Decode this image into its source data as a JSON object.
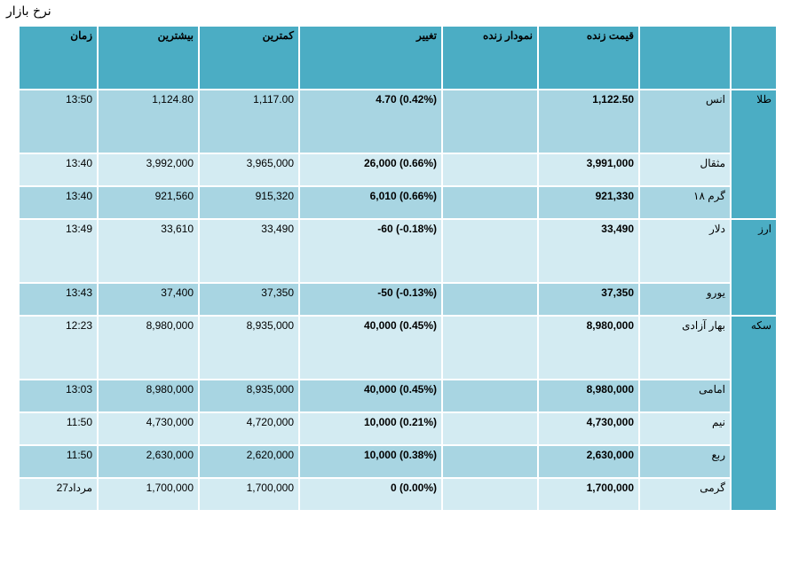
{
  "title": "نرخ بازار",
  "headers": {
    "time": "زمان",
    "high": "بیشترین",
    "low": "کمترین",
    "change": "تغییر",
    "live_chart": "نمودار زنده",
    "live_price": "قیمت زنده"
  },
  "groups": {
    "gold": "طلا",
    "currency": "ارز",
    "coin": "سکه"
  },
  "rows": [
    {
      "name": "انس",
      "price": "1,122.50",
      "change": "4.70 (0.42%)",
      "low": "1,117.00",
      "high": "1,124.80",
      "time": "13:50"
    },
    {
      "name": "مثقال",
      "price": "3,991,000",
      "change": "26,000 (0.66%)",
      "low": "3,965,000",
      "high": "3,992,000",
      "time": "13:40"
    },
    {
      "name": "گرم ۱۸",
      "price": "921,330",
      "change": "6,010 (0.66%)",
      "low": "915,320",
      "high": "921,560",
      "time": "13:40"
    },
    {
      "name": "دلار",
      "price": "33,490",
      "change": "-60 (-0.18%)",
      "low": "33,490",
      "high": "33,610",
      "time": "13:49"
    },
    {
      "name": "یورو",
      "price": "37,350",
      "change": "-50 (-0.13%)",
      "low": "37,350",
      "high": "37,400",
      "time": "13:43"
    },
    {
      "name": "بهار آزادی",
      "price": "8,980,000",
      "change": "40,000 (0.45%)",
      "low": "8,935,000",
      "high": "8,980,000",
      "time": "12:23"
    },
    {
      "name": "امامی",
      "price": "8,980,000",
      "change": "40,000 (0.45%)",
      "low": "8,935,000",
      "high": "8,980,000",
      "time": "13:03"
    },
    {
      "name": "نیم",
      "price": "4,730,000",
      "change": "10,000 (0.21%)",
      "low": "4,720,000",
      "high": "4,730,000",
      "time": "11:50"
    },
    {
      "name": "ربع",
      "price": "2,630,000",
      "change": "10,000 (0.38%)",
      "low": "2,620,000",
      "high": "2,630,000",
      "time": "11:50"
    },
    {
      "name": "گرمی",
      "price": "1,700,000",
      "change": "0 (0.00%)",
      "low": "1,700,000",
      "high": "1,700,000",
      "time": "27مرداد"
    }
  ]
}
